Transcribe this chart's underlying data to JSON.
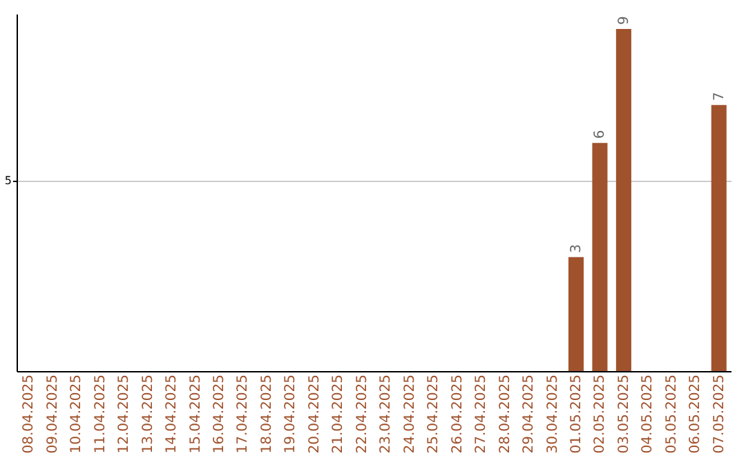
{
  "chart_data": {
    "type": "bar",
    "categories": [
      "08.04.2025",
      "09.04.2025",
      "10.04.2025",
      "11.04.2025",
      "12.04.2025",
      "13.04.2025",
      "14.04.2025",
      "15.04.2025",
      "16.04.2025",
      "17.04.2025",
      "18.04.2025",
      "19.04.2025",
      "20.04.2025",
      "21.04.2025",
      "22.04.2025",
      "23.04.2025",
      "24.04.2025",
      "25.04.2025",
      "26.04.2025",
      "27.04.2025",
      "28.04.2025",
      "29.04.2025",
      "30.04.2025",
      "01.05.2025",
      "02.05.2025",
      "03.05.2025",
      "04.05.2025",
      "05.05.2025",
      "06.05.2025",
      "07.05.2025"
    ],
    "values": [
      null,
      null,
      null,
      null,
      null,
      null,
      null,
      null,
      null,
      null,
      null,
      null,
      null,
      null,
      null,
      null,
      null,
      null,
      null,
      null,
      null,
      null,
      null,
      3,
      6,
      9,
      null,
      null,
      null,
      7
    ],
    "data_labels": true,
    "color": "#a0522d",
    "ylim": [
      0,
      9.4
    ],
    "yticks": [
      5
    ],
    "grid": "y"
  }
}
